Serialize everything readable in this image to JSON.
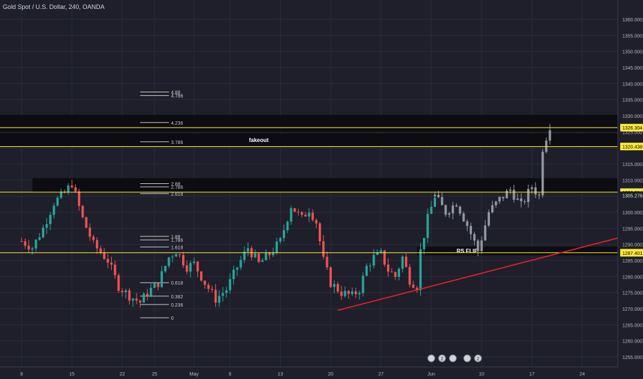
{
  "header": {
    "title": "Gold Spot / U.S. Dollar, 240, OANDA"
  },
  "colors": {
    "background": "#1e1f2b",
    "grid": "#2a2c3a",
    "axis_text": "#b2b5be",
    "bull": "#26a69a",
    "bear": "#ef5350",
    "projection": "#9598a1",
    "zone": "#0b0b0f",
    "level": "#ffeb3b",
    "trendline": "#e8212d",
    "fib": "#c8c8c8"
  },
  "chart_data": {
    "type": "candlestick",
    "symbol": "Gold Spot / U.S. Dollar",
    "interval": "240",
    "source": "OANDA",
    "ylim": [
      1252,
      1366
    ],
    "y_ticks": [
      1255,
      1260,
      1265,
      1270,
      1275,
      1280,
      1285,
      1290,
      1295,
      1300,
      1305,
      1310,
      1315,
      1320,
      1325,
      1330,
      1335,
      1340,
      1345,
      1350,
      1355,
      1360
    ],
    "y_tick_labels": [
      "1255.000",
      "1260.000",
      "1265.000",
      "1270.000",
      "1275.000",
      "1280.000",
      "1285.000",
      "1290.000",
      "1295.000",
      "1300.000",
      "1305.000",
      "1310.000",
      "1315.000",
      "1320.000",
      "1325.000",
      "1330.000",
      "1335.000",
      "1340.000",
      "1345.000",
      "1350.000",
      "1355.000",
      "1360.000"
    ],
    "x_ticks": [
      {
        "label": "8",
        "i": 0
      },
      {
        "label": "15",
        "i": 14
      },
      {
        "label": "22",
        "i": 28
      },
      {
        "label": "25",
        "i": 37
      },
      {
        "label": "May",
        "i": 48
      },
      {
        "label": "6",
        "i": 58
      },
      {
        "label": "13",
        "i": 72
      },
      {
        "label": "20",
        "i": 86
      },
      {
        "label": "27",
        "i": 100
      },
      {
        "label": "Jun",
        "i": 114
      },
      {
        "label": "10",
        "i": 128
      },
      {
        "label": "17",
        "i": 142
      },
      {
        "label": "24",
        "i": 156
      }
    ],
    "x_index_range": [
      -6,
      166
    ],
    "price_waypoints": [
      [
        0,
        1291
      ],
      [
        3,
        1289
      ],
      [
        6,
        1295
      ],
      [
        9,
        1303
      ],
      [
        12,
        1306
      ],
      [
        14,
        1309
      ],
      [
        17,
        1298
      ],
      [
        20,
        1290
      ],
      [
        24,
        1285
      ],
      [
        27,
        1277
      ],
      [
        30,
        1274
      ],
      [
        33,
        1272
      ],
      [
        35,
        1275
      ],
      [
        38,
        1278
      ],
      [
        41,
        1286
      ],
      [
        43,
        1288
      ],
      [
        46,
        1283
      ],
      [
        48,
        1284
      ],
      [
        51,
        1278
      ],
      [
        54,
        1273
      ],
      [
        57,
        1276
      ],
      [
        60,
        1283
      ],
      [
        63,
        1289
      ],
      [
        66,
        1284
      ],
      [
        69,
        1287
      ],
      [
        72,
        1291
      ],
      [
        75,
        1302
      ],
      [
        78,
        1298
      ],
      [
        80,
        1301
      ],
      [
        82,
        1297
      ],
      [
        84,
        1285
      ],
      [
        86,
        1278
      ],
      [
        89,
        1275
      ],
      [
        92,
        1274
      ],
      [
        94,
        1276
      ],
      [
        96,
        1283
      ],
      [
        98,
        1286
      ],
      [
        100,
        1287
      ],
      [
        102,
        1282
      ],
      [
        104,
        1280
      ],
      [
        106,
        1286
      ],
      [
        108,
        1279
      ],
      [
        110,
        1277
      ],
      [
        111,
        1288
      ],
      [
        113,
        1298
      ],
      [
        115,
        1305
      ]
    ],
    "projection_waypoints": [
      [
        115,
        1305
      ],
      [
        118,
        1300
      ],
      [
        121,
        1303
      ],
      [
        124,
        1296
      ],
      [
        127,
        1288
      ],
      [
        130,
        1300
      ],
      [
        133,
        1304
      ],
      [
        136,
        1307
      ],
      [
        139,
        1302
      ],
      [
        142,
        1308
      ],
      [
        144,
        1305
      ],
      [
        145,
        1320
      ],
      [
        147,
        1327
      ]
    ],
    "levels": [
      {
        "price": 1326.304,
        "label": "1326.304"
      },
      {
        "price": 1320.438,
        "label": "1320.438"
      },
      {
        "price": 1306.234,
        "label": "1306.234"
      },
      {
        "price": 1287.401,
        "label": "1287.401"
      }
    ],
    "last_price_label": "1305.276",
    "last_price": 1305.276,
    "zones": [
      {
        "x0": -6,
        "x1": 166,
        "y0": 1325.0,
        "y1": 1330.3,
        "label": ""
      },
      {
        "x0": -6,
        "x1": 166,
        "y0": 1320.4,
        "y1": 1324.5,
        "label": "fakeout",
        "label_x": 66
      },
      {
        "x0": 3,
        "x1": 166,
        "y0": 1306.3,
        "y1": 1310.6,
        "label": ""
      },
      {
        "x0": 110,
        "x1": 166,
        "y0": 1286.6,
        "y1": 1289.3,
        "label": "RS FLIP",
        "label_x": 124
      }
    ],
    "trendline": {
      "x0": 88,
      "y0": 1269.5,
      "x1": 166,
      "y1": 1292.0
    },
    "fib": {
      "x0": 33,
      "x1": 41,
      "levels": [
        {
          "price": 1267.2,
          "label": "0"
        },
        {
          "price": 1271.3,
          "label": "0.236"
        },
        {
          "price": 1273.9,
          "label": "0.382"
        },
        {
          "price": 1278.1,
          "label": "0.618"
        },
        {
          "price": 1289.2,
          "label": "1.618"
        },
        {
          "price": 1291.4,
          "label": "1.786"
        },
        {
          "price": 1292.5,
          "label": "1.88"
        },
        {
          "price": 1305.8,
          "label": "2.618"
        },
        {
          "price": 1307.9,
          "label": "2.786"
        },
        {
          "price": 1308.9,
          "label": "2.88"
        },
        {
          "price": 1321.9,
          "label": "3.786"
        },
        {
          "price": 1327.9,
          "label": "4.236"
        },
        {
          "price": 1336.3,
          "label": "4.786"
        },
        {
          "price": 1337.4,
          "label": "4.88"
        }
      ]
    },
    "events": [
      {
        "i": 114,
        "label": ""
      },
      {
        "i": 117,
        "label": "2"
      },
      {
        "i": 120,
        "label": ""
      },
      {
        "i": 124,
        "label": ""
      },
      {
        "i": 127,
        "label": "2"
      }
    ]
  }
}
